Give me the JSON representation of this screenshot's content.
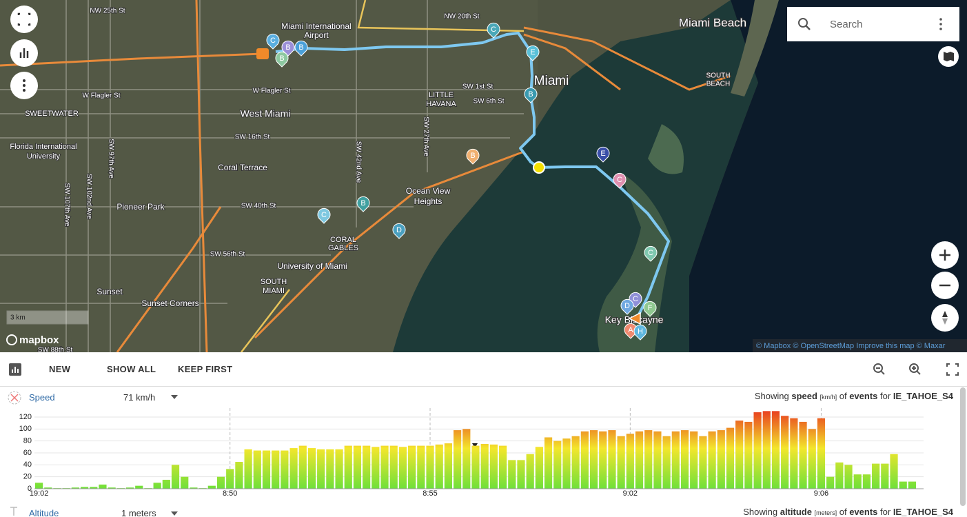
{
  "search": {
    "placeholder": "Search"
  },
  "map": {
    "labels": [
      "Miami Beach",
      "Miami",
      "West Miami",
      "SWEETWATER",
      "Coral Terrace",
      "Pioneer Park",
      "Ocean View",
      "Heights",
      "CORAL",
      "GABLES",
      "University of Miami",
      "SOUTH",
      "MIAMI",
      "Sunset",
      "Sunset Corners",
      "LITTLE",
      "HAVANA",
      "Key Biscayne",
      "Miami International",
      "Airport",
      "Florida International",
      "University",
      "SOUTH",
      "BEACH"
    ],
    "streets": [
      "NW 25th St",
      "NW 20th St",
      "W Flagler St",
      "W Flagler St",
      "SW 1st St",
      "SW 6th St",
      "SW 16th St",
      "SW 40th St",
      "SW 56th St",
      "SW 88th St",
      "SW 27th Ave",
      "SW 42nd Ave",
      "SW 97th Ave",
      "SW 102nd Ave",
      "SW 107th Ave"
    ],
    "pins": [
      "C",
      "B",
      "B",
      "B",
      "C",
      "E",
      "B",
      "B",
      "E",
      "C",
      "B",
      "C",
      "D",
      "C",
      "C",
      "D",
      "F",
      "A",
      "H"
    ],
    "scale": "3 km",
    "logo": "mapbox",
    "attribution": "© Mapbox © OpenStreetMap Improve this map © Maxar"
  },
  "toolbar": {
    "buttons": [
      "NEW",
      "SHOW ALL",
      "KEEP FIRST"
    ]
  },
  "speed_panel": {
    "name": "Speed",
    "current": "71 km/h",
    "showing": "Showing",
    "metric": "speed",
    "unit": "[km/h]",
    "of": "of",
    "events": "events",
    "for": "for",
    "source": "IE_TAHOE_S4"
  },
  "altitude_panel": {
    "name": "Altitude",
    "current": "1 meters",
    "showing": "Showing",
    "metric": "altitude",
    "unit": "[meters]",
    "of": "of",
    "events": "events",
    "for": "for",
    "source": "IE_TAHOE_S4"
  },
  "chart_data": {
    "type": "bar",
    "categories": [
      "19:02",
      null,
      null,
      null,
      null,
      null,
      null,
      null,
      null,
      null,
      null,
      null,
      null,
      null,
      null,
      null,
      null,
      null,
      null,
      null,
      null,
      "8:50",
      null,
      null,
      null,
      null,
      null,
      null,
      null,
      null,
      null,
      null,
      null,
      null,
      null,
      null,
      null,
      null,
      null,
      null,
      null,
      null,
      null,
      "8:55",
      null,
      null,
      null,
      null,
      null,
      null,
      null,
      null,
      null,
      null,
      null,
      null,
      null,
      null,
      null,
      null,
      null,
      null,
      null,
      null,
      null,
      "9:02",
      null,
      null,
      null,
      null,
      null,
      null,
      null,
      null,
      null,
      null,
      null,
      null,
      null,
      null,
      null,
      null,
      null,
      null,
      null,
      null,
      "9:06",
      null,
      null,
      null,
      null,
      null,
      null,
      null,
      null,
      null,
      null
    ],
    "values": [
      10,
      2,
      1,
      1,
      2,
      3,
      3,
      7,
      2,
      1,
      2,
      5,
      1,
      10,
      15,
      40,
      20,
      2,
      1,
      5,
      20,
      33,
      45,
      66,
      64,
      64,
      64,
      64,
      68,
      72,
      68,
      66,
      66,
      66,
      72,
      72,
      72,
      70,
      72,
      72,
      70,
      72,
      72,
      72,
      74,
      76,
      98,
      100,
      72,
      75,
      74,
      72,
      48,
      48,
      58,
      70,
      86,
      80,
      84,
      88,
      96,
      98,
      96,
      98,
      88,
      92,
      96,
      98,
      96,
      88,
      96,
      98,
      96,
      88,
      96,
      98,
      102,
      114,
      112,
      128,
      130,
      130,
      122,
      118,
      112,
      100,
      118,
      20,
      44,
      40,
      24,
      24,
      42,
      42,
      58,
      12,
      12
    ],
    "gradient": [
      "#6fe03a",
      "#f3e62c",
      "#e8321e"
    ],
    "ylim": [
      0,
      135
    ],
    "yticks": [
      0,
      20,
      40,
      60,
      80,
      100,
      120
    ],
    "grid": true
  }
}
